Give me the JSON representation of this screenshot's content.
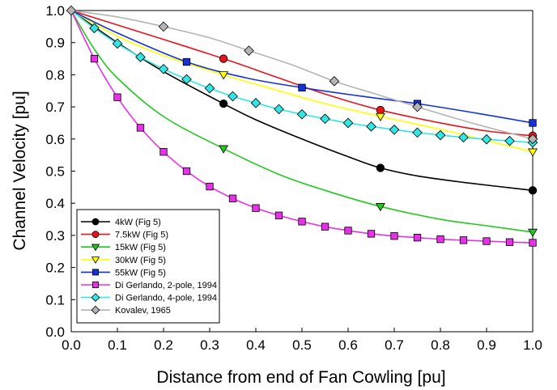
{
  "chart_data": {
    "type": "line",
    "title": "",
    "xlabel": "Distance from end of Fan Cowling [pu]",
    "ylabel": "Channel Velocity [pu]",
    "xlim": [
      0,
      1
    ],
    "ylim": [
      0,
      1
    ],
    "xticks": [
      "0.0",
      "0.1",
      "0.2",
      "0.3",
      "0.4",
      "0.5",
      "0.6",
      "0.7",
      "0.8",
      "0.9",
      "1.0"
    ],
    "yticks": [
      "0.0",
      "0.1",
      "0.2",
      "0.3",
      "0.4",
      "0.5",
      "0.6",
      "0.7",
      "0.8",
      "0.9",
      "1.0"
    ],
    "grid": false,
    "legend_position": "bottom-left",
    "series": [
      {
        "name": "4kW (Fig 5)",
        "color": "#000000",
        "marker": "circle",
        "points": [
          [
            0,
            1.0
          ],
          [
            0.33,
            0.71
          ],
          [
            0.67,
            0.51
          ],
          [
            1.0,
            0.44
          ]
        ],
        "curve": [
          [
            0,
            1.0
          ],
          [
            0.1,
            0.9
          ],
          [
            0.2,
            0.81
          ],
          [
            0.33,
            0.71
          ],
          [
            0.4,
            0.66
          ],
          [
            0.5,
            0.6
          ],
          [
            0.6,
            0.545
          ],
          [
            0.67,
            0.51
          ],
          [
            0.75,
            0.485
          ],
          [
            0.85,
            0.465
          ],
          [
            1.0,
            0.44
          ]
        ]
      },
      {
        "name": "7.5kW (Fig 5)",
        "color": "#e8141c",
        "marker": "circle",
        "points": [
          [
            0,
            1.0
          ],
          [
            0.33,
            0.85
          ],
          [
            0.67,
            0.69
          ],
          [
            1.0,
            0.61
          ]
        ],
        "curve": [
          [
            0,
            1.0
          ],
          [
            0.1,
            0.955
          ],
          [
            0.2,
            0.91
          ],
          [
            0.33,
            0.85
          ],
          [
            0.45,
            0.79
          ],
          [
            0.55,
            0.74
          ],
          [
            0.67,
            0.69
          ],
          [
            0.8,
            0.65
          ],
          [
            0.9,
            0.625
          ],
          [
            1.0,
            0.61
          ]
        ]
      },
      {
        "name": "15kW (Fig 5)",
        "color": "#22c81e",
        "marker": "triangle-down",
        "points": [
          [
            0,
            1.0
          ],
          [
            0.33,
            0.57
          ],
          [
            0.67,
            0.39
          ],
          [
            1.0,
            0.31
          ]
        ],
        "curve": [
          [
            0,
            1.0
          ],
          [
            0.05,
            0.88
          ],
          [
            0.1,
            0.79
          ],
          [
            0.2,
            0.67
          ],
          [
            0.33,
            0.57
          ],
          [
            0.45,
            0.49
          ],
          [
            0.55,
            0.44
          ],
          [
            0.67,
            0.39
          ],
          [
            0.8,
            0.35
          ],
          [
            0.9,
            0.33
          ],
          [
            1.0,
            0.31
          ]
        ]
      },
      {
        "name": "30kW (Fig 5)",
        "color": "#ffff00",
        "marker": "triangle-down",
        "points": [
          [
            0,
            1.0
          ],
          [
            0.33,
            0.8
          ],
          [
            0.67,
            0.67
          ],
          [
            1.0,
            0.56
          ]
        ],
        "curve": [
          [
            0,
            1.0
          ],
          [
            0.1,
            0.92
          ],
          [
            0.2,
            0.86
          ],
          [
            0.33,
            0.8
          ],
          [
            0.45,
            0.75
          ],
          [
            0.55,
            0.71
          ],
          [
            0.67,
            0.67
          ],
          [
            0.8,
            0.63
          ],
          [
            0.9,
            0.595
          ],
          [
            1.0,
            0.56
          ]
        ]
      },
      {
        "name": "55kW (Fig 5)",
        "color": "#1432dc",
        "marker": "square",
        "points": [
          [
            0,
            1.0
          ],
          [
            0.25,
            0.84
          ],
          [
            0.5,
            0.76
          ],
          [
            0.75,
            0.71
          ],
          [
            1.0,
            0.65
          ]
        ],
        "curve": [
          [
            0,
            1.0
          ],
          [
            0.1,
            0.93
          ],
          [
            0.25,
            0.84
          ],
          [
            0.38,
            0.79
          ],
          [
            0.5,
            0.76
          ],
          [
            0.62,
            0.735
          ],
          [
            0.75,
            0.71
          ],
          [
            0.88,
            0.68
          ],
          [
            1.0,
            0.65
          ]
        ]
      },
      {
        "name": "Di Gerlando, 2-pole, 1994",
        "color": "#e632e6",
        "marker": "square",
        "points": [
          [
            0.05,
            0.85
          ],
          [
            0.1,
            0.73
          ],
          [
            0.15,
            0.635
          ],
          [
            0.2,
            0.56
          ],
          [
            0.25,
            0.5
          ],
          [
            0.3,
            0.452
          ],
          [
            0.35,
            0.415
          ],
          [
            0.4,
            0.385
          ],
          [
            0.45,
            0.362
          ],
          [
            0.5,
            0.343
          ],
          [
            0.55,
            0.327
          ],
          [
            0.6,
            0.315
          ],
          [
            0.65,
            0.305
          ],
          [
            0.7,
            0.298
          ],
          [
            0.75,
            0.293
          ],
          [
            0.8,
            0.288
          ],
          [
            0.85,
            0.285
          ],
          [
            0.9,
            0.282
          ],
          [
            0.95,
            0.279
          ],
          [
            1.0,
            0.277
          ]
        ],
        "curve": [
          [
            0,
            1.0
          ],
          [
            0.05,
            0.85
          ],
          [
            0.1,
            0.73
          ],
          [
            0.15,
            0.635
          ],
          [
            0.2,
            0.56
          ],
          [
            0.25,
            0.5
          ],
          [
            0.3,
            0.452
          ],
          [
            0.35,
            0.415
          ],
          [
            0.4,
            0.385
          ],
          [
            0.45,
            0.362
          ],
          [
            0.5,
            0.343
          ],
          [
            0.55,
            0.327
          ],
          [
            0.6,
            0.315
          ],
          [
            0.65,
            0.305
          ],
          [
            0.7,
            0.298
          ],
          [
            0.75,
            0.293
          ],
          [
            0.8,
            0.288
          ],
          [
            0.85,
            0.285
          ],
          [
            0.9,
            0.282
          ],
          [
            0.95,
            0.279
          ],
          [
            1.0,
            0.277
          ]
        ]
      },
      {
        "name": "Di Gerlando, 4-pole, 1994",
        "color": "#32e6e6",
        "marker": "diamond",
        "points": [
          [
            0.05,
            0.945
          ],
          [
            0.1,
            0.897
          ],
          [
            0.15,
            0.855
          ],
          [
            0.2,
            0.818
          ],
          [
            0.25,
            0.786
          ],
          [
            0.3,
            0.758
          ],
          [
            0.35,
            0.733
          ],
          [
            0.4,
            0.712
          ],
          [
            0.45,
            0.693
          ],
          [
            0.5,
            0.677
          ],
          [
            0.55,
            0.663
          ],
          [
            0.6,
            0.65
          ],
          [
            0.65,
            0.639
          ],
          [
            0.7,
            0.629
          ],
          [
            0.75,
            0.62
          ],
          [
            0.8,
            0.612
          ],
          [
            0.85,
            0.605
          ],
          [
            0.9,
            0.599
          ],
          [
            0.95,
            0.594
          ],
          [
            1.0,
            0.589
          ]
        ],
        "curve": [
          [
            0,
            1.0
          ],
          [
            0.05,
            0.945
          ],
          [
            0.1,
            0.897
          ],
          [
            0.15,
            0.855
          ],
          [
            0.2,
            0.818
          ],
          [
            0.25,
            0.786
          ],
          [
            0.3,
            0.758
          ],
          [
            0.35,
            0.733
          ],
          [
            0.4,
            0.712
          ],
          [
            0.45,
            0.693
          ],
          [
            0.5,
            0.677
          ],
          [
            0.55,
            0.663
          ],
          [
            0.6,
            0.65
          ],
          [
            0.65,
            0.639
          ],
          [
            0.7,
            0.629
          ],
          [
            0.75,
            0.62
          ],
          [
            0.8,
            0.612
          ],
          [
            0.85,
            0.605
          ],
          [
            0.9,
            0.599
          ],
          [
            0.95,
            0.594
          ],
          [
            1.0,
            0.589
          ]
        ]
      },
      {
        "name": "Kovalev, 1965",
        "color": "#b4b4b4",
        "marker": "diamond",
        "points": [
          [
            0,
            1.0
          ],
          [
            0.2,
            0.95
          ],
          [
            0.385,
            0.875
          ],
          [
            0.57,
            0.78
          ],
          [
            0.75,
            0.7
          ],
          [
            1.0,
            0.6
          ]
        ],
        "curve": [
          [
            0,
            1.0
          ],
          [
            0.1,
            0.98
          ],
          [
            0.2,
            0.95
          ],
          [
            0.3,
            0.915
          ],
          [
            0.385,
            0.875
          ],
          [
            0.48,
            0.83
          ],
          [
            0.57,
            0.78
          ],
          [
            0.66,
            0.74
          ],
          [
            0.75,
            0.7
          ],
          [
            0.88,
            0.645
          ],
          [
            1.0,
            0.6
          ]
        ]
      }
    ]
  }
}
